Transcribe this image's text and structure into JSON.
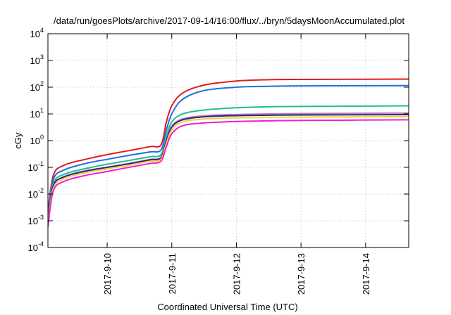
{
  "chart_data": {
    "type": "line",
    "title": "/data/run/goesPlots/archive/2017-09-14/16:00/flux/../bryn/5daysMoonAccumulated.plot",
    "xlabel": "Coordinated Universal Time (UTC)",
    "ylabel": "cGy",
    "xlim": [
      "2017-09-09T02:00",
      "2017-09-14T16:00"
    ],
    "ylim": [
      0.0001,
      10000
    ],
    "yscale": "log",
    "grid": true,
    "xticks": [
      "2017-9-10",
      "2017-9-11",
      "2017-9-12",
      "2017-9-13",
      "2017-9-14"
    ],
    "yticks": [
      {
        "base": "10",
        "exp": "-4",
        "value": 0.0001
      },
      {
        "base": "10",
        "exp": "-3",
        "value": 0.001
      },
      {
        "base": "10",
        "exp": "-2",
        "value": 0.01
      },
      {
        "base": "10",
        "exp": "-1",
        "value": 0.1
      },
      {
        "base": "10",
        "exp": "0",
        "value": 1
      },
      {
        "base": "10",
        "exp": "1",
        "value": 10
      },
      {
        "base": "10",
        "exp": "2",
        "value": 100
      },
      {
        "base": "10",
        "exp": "3",
        "value": 1000
      },
      {
        "base": "10",
        "exp": "4",
        "value": 10000
      }
    ],
    "series": [
      {
        "color": "#e41a1c",
        "points": [
          [
            "2017-09-09T02:00",
            0.002
          ],
          [
            "2017-09-09T04:00",
            0.05
          ],
          [
            "2017-09-09T08:00",
            0.12
          ],
          [
            "2017-09-09T16:00",
            0.2
          ],
          [
            "2017-09-10T00:00",
            0.3
          ],
          [
            "2017-09-10T08:00",
            0.42
          ],
          [
            "2017-09-10T16:00",
            0.6
          ],
          [
            "2017-09-10T20:00",
            0.7
          ],
          [
            "2017-09-10T22:00",
            5
          ],
          [
            "2017-09-11T00:00",
            20
          ],
          [
            "2017-09-11T04:00",
            60
          ],
          [
            "2017-09-11T12:00",
            120
          ],
          [
            "2017-09-12T00:00",
            170
          ],
          [
            "2017-09-12T12:00",
            190
          ],
          [
            "2017-09-13T00:00",
            195
          ],
          [
            "2017-09-14T16:00",
            200
          ]
        ]
      },
      {
        "color": "#1f6fdd",
        "points": [
          [
            "2017-09-09T02:00",
            0.0015
          ],
          [
            "2017-09-09T04:00",
            0.035
          ],
          [
            "2017-09-09T08:00",
            0.08
          ],
          [
            "2017-09-09T16:00",
            0.14
          ],
          [
            "2017-09-10T00:00",
            0.2
          ],
          [
            "2017-09-10T08:00",
            0.28
          ],
          [
            "2017-09-10T16:00",
            0.38
          ],
          [
            "2017-09-10T20:00",
            0.45
          ],
          [
            "2017-09-10T22:00",
            2.5
          ],
          [
            "2017-09-11T00:00",
            10
          ],
          [
            "2017-09-11T04:00",
            35
          ],
          [
            "2017-09-11T12:00",
            75
          ],
          [
            "2017-09-12T00:00",
            100
          ],
          [
            "2017-09-12T12:00",
            108
          ],
          [
            "2017-09-13T00:00",
            112
          ],
          [
            "2017-09-14T16:00",
            115
          ]
        ]
      },
      {
        "color": "#1fbe96",
        "points": [
          [
            "2017-09-09T02:00",
            0.0012
          ],
          [
            "2017-09-09T04:00",
            0.025
          ],
          [
            "2017-09-09T08:00",
            0.055
          ],
          [
            "2017-09-09T16:00",
            0.09
          ],
          [
            "2017-09-10T00:00",
            0.13
          ],
          [
            "2017-09-10T08:00",
            0.18
          ],
          [
            "2017-09-10T16:00",
            0.25
          ],
          [
            "2017-09-10T20:00",
            0.3
          ],
          [
            "2017-09-10T22:00",
            1.5
          ],
          [
            "2017-09-11T00:00",
            5
          ],
          [
            "2017-09-11T04:00",
            10
          ],
          [
            "2017-09-11T12:00",
            14
          ],
          [
            "2017-09-12T00:00",
            17
          ],
          [
            "2017-09-12T12:00",
            18.5
          ],
          [
            "2017-09-13T00:00",
            19
          ],
          [
            "2017-09-14T16:00",
            20
          ]
        ]
      },
      {
        "color": "#c07ab8",
        "points": [
          [
            "2017-09-09T02:00",
            0.001
          ],
          [
            "2017-09-09T04:00",
            0.02
          ],
          [
            "2017-09-09T08:00",
            0.045
          ],
          [
            "2017-09-09T16:00",
            0.075
          ],
          [
            "2017-09-10T00:00",
            0.1
          ],
          [
            "2017-09-10T08:00",
            0.14
          ],
          [
            "2017-09-10T16:00",
            0.2
          ],
          [
            "2017-09-10T20:00",
            0.24
          ],
          [
            "2017-09-10T22:00",
            1.1
          ],
          [
            "2017-09-11T00:00",
            3.5
          ],
          [
            "2017-09-11T04:00",
            6.5
          ],
          [
            "2017-09-11T12:00",
            8.5
          ],
          [
            "2017-09-12T00:00",
            9.5
          ],
          [
            "2017-09-12T12:00",
            10
          ],
          [
            "2017-09-13T00:00",
            10.3
          ],
          [
            "2017-09-14T16:00",
            10.8
          ]
        ]
      },
      {
        "color": "#2a2a80",
        "points": [
          [
            "2017-09-09T02:00",
            0.001
          ],
          [
            "2017-09-09T04:00",
            0.02
          ],
          [
            "2017-09-09T08:00",
            0.044
          ],
          [
            "2017-09-09T16:00",
            0.072
          ],
          [
            "2017-09-10T00:00",
            0.1
          ],
          [
            "2017-09-10T08:00",
            0.135
          ],
          [
            "2017-09-10T16:00",
            0.19
          ],
          [
            "2017-09-10T20:00",
            0.23
          ],
          [
            "2017-09-10T22:00",
            1.0
          ],
          [
            "2017-09-11T00:00",
            3.2
          ],
          [
            "2017-09-11T04:00",
            6
          ],
          [
            "2017-09-11T12:00",
            7.8
          ],
          [
            "2017-09-12T00:00",
            8.6
          ],
          [
            "2017-09-12T12:00",
            8.9
          ],
          [
            "2017-09-13T00:00",
            9.1
          ],
          [
            "2017-09-14T16:00",
            9.4
          ]
        ]
      },
      {
        "color": "#f2d33a",
        "points": [
          [
            "2017-09-09T02:00",
            0.0008
          ],
          [
            "2017-09-09T04:00",
            0.016
          ],
          [
            "2017-09-09T08:00",
            0.038
          ],
          [
            "2017-09-09T16:00",
            0.063
          ],
          [
            "2017-09-10T00:00",
            0.088
          ],
          [
            "2017-09-10T08:00",
            0.12
          ],
          [
            "2017-09-10T16:00",
            0.17
          ],
          [
            "2017-09-10T20:00",
            0.2
          ],
          [
            "2017-09-10T22:00",
            0.8
          ],
          [
            "2017-09-11T00:00",
            2.5
          ],
          [
            "2017-09-11T04:00",
            5
          ],
          [
            "2017-09-11T12:00",
            6.4
          ],
          [
            "2017-09-12T00:00",
            7.1
          ],
          [
            "2017-09-12T12:00",
            7.4
          ],
          [
            "2017-09-13T00:00",
            7.6
          ],
          [
            "2017-09-14T16:00",
            7.9
          ]
        ]
      },
      {
        "color": "#f01fd0",
        "points": [
          [
            "2017-09-09T02:00",
            0.0006
          ],
          [
            "2017-09-09T04:00",
            0.013
          ],
          [
            "2017-09-09T08:00",
            0.03
          ],
          [
            "2017-09-09T16:00",
            0.05
          ],
          [
            "2017-09-10T00:00",
            0.07
          ],
          [
            "2017-09-10T08:00",
            0.1
          ],
          [
            "2017-09-10T16:00",
            0.14
          ],
          [
            "2017-09-10T20:00",
            0.17
          ],
          [
            "2017-09-10T22:00",
            0.6
          ],
          [
            "2017-09-11T00:00",
            1.8
          ],
          [
            "2017-09-11T04:00",
            3.6
          ],
          [
            "2017-09-11T12:00",
            4.6
          ],
          [
            "2017-09-12T00:00",
            5.2
          ],
          [
            "2017-09-12T12:00",
            5.5
          ],
          [
            "2017-09-13T00:00",
            5.7
          ],
          [
            "2017-09-14T16:00",
            6
          ]
        ]
      }
    ]
  }
}
